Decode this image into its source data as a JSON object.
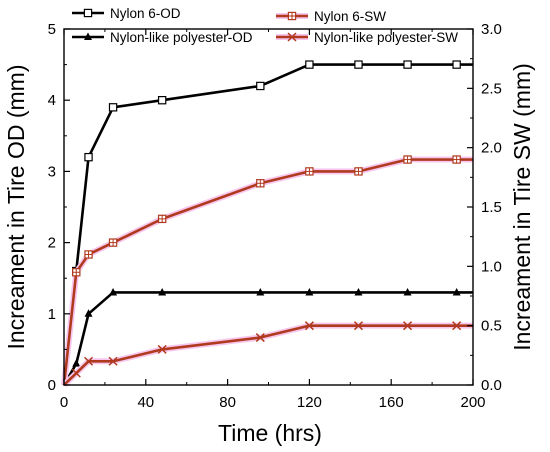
{
  "chart_data": {
    "type": "line",
    "xlabel": "Time (hrs)",
    "ylabel": "Increament in Tire OD (mm)",
    "y2label": "Increament in Tire SW (mm)",
    "xlim": [
      0,
      200
    ],
    "ylim": [
      0,
      5
    ],
    "y2lim": [
      0,
      3
    ],
    "x_ticks": [
      0,
      40,
      80,
      120,
      160,
      200
    ],
    "y_ticks": [
      0,
      1,
      2,
      3,
      4,
      5
    ],
    "y2_ticks": [
      "0.0",
      "0.5",
      "1.0",
      "1.5",
      "2.0",
      "2.5",
      "3.0"
    ],
    "grid": false,
    "legend_position": "top",
    "series": [
      {
        "name": "Nylon 6-OD",
        "axis": "left",
        "marker": "open-square",
        "color": "#000000",
        "x": [
          0,
          6,
          12,
          24,
          48,
          96,
          120,
          144,
          168,
          192,
          200
        ],
        "y": [
          0,
          1.6,
          3.2,
          3.9,
          4.0,
          4.2,
          4.5,
          4.5,
          4.5,
          4.5,
          4.5
        ]
      },
      {
        "name": "Nylon-like polyester-OD",
        "axis": "left",
        "marker": "triangle",
        "color": "#000000",
        "x": [
          0,
          6,
          12,
          24,
          48,
          96,
          120,
          144,
          168,
          192,
          200
        ],
        "y": [
          0,
          0.3,
          1.0,
          1.3,
          1.3,
          1.3,
          1.3,
          1.3,
          1.3,
          1.3,
          1.3
        ]
      },
      {
        "name": "Nylon 6-SW",
        "axis": "right",
        "marker": "crossed-square",
        "color": "#b03a1e",
        "x": [
          0,
          6,
          12,
          24,
          48,
          96,
          120,
          144,
          168,
          192,
          200
        ],
        "y": [
          0,
          0.95,
          1.1,
          1.2,
          1.4,
          1.7,
          1.8,
          1.8,
          1.9,
          1.9,
          1.9
        ]
      },
      {
        "name": "Nylon-like polyester-SW",
        "axis": "right",
        "marker": "x",
        "color": "#b03a1e",
        "x": [
          0,
          6,
          12,
          24,
          48,
          96,
          120,
          144,
          168,
          192,
          200
        ],
        "y": [
          0,
          0.1,
          0.2,
          0.2,
          0.3,
          0.4,
          0.5,
          0.5,
          0.5,
          0.5,
          0.5
        ]
      }
    ]
  }
}
